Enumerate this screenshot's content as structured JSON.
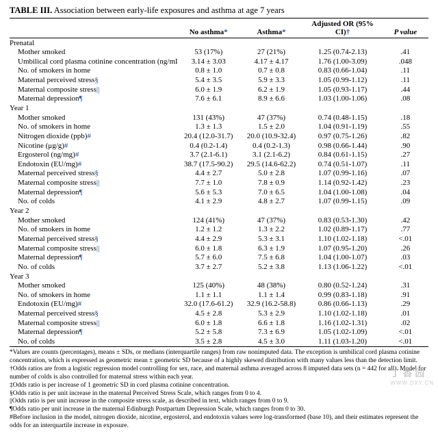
{
  "title_prefix": "TABLE III.",
  "title_rest": " Association between early-life exposures and asthma at age 7 years",
  "columns": {
    "c0": "",
    "c1": "No asthma",
    "c2": "Asthma",
    "c3": "Adjusted OR (95% CI)",
    "c4": "P value"
  },
  "col_marks": {
    "c1": "*",
    "c2": "*",
    "c3": "†",
    "c4": ""
  },
  "col_widths": [
    "40%",
    "15%",
    "15%",
    "19%",
    "11%"
  ],
  "sections": [
    {
      "heading": "Prenatal",
      "rows": [
        {
          "label": "Mother smoked",
          "sym": "",
          "c1": "53 (17%)",
          "c2": "27 (21%)",
          "c3": "1.25 (0.74-2.13)",
          "p": ".41"
        },
        {
          "label": "Umbilical cord plasma cotinine concentration (ng/mL)",
          "sym": "‡",
          "c1": "3.14 ± 3.03",
          "c2": "4.17 ± 4.17",
          "c3": "1.76 (1.00-3.09)",
          "p": ".048"
        },
        {
          "label": "No. of smokers in home",
          "sym": "",
          "c1": "0.8 ± 1.0",
          "c2": "0.7 ± 0.8",
          "c3": "0.83 (0.66-1.04)",
          "p": ".11"
        },
        {
          "label": "Maternal perceived stress",
          "sym": "§",
          "c1": "5.4 ± 3.5",
          "c2": "5.9 ± 3.3",
          "c3": "1.05 (0.99-1.12)",
          "p": ".11"
        },
        {
          "label": "Maternal composite stress",
          "sym": "||",
          "c1": "6.0 ± 1.9",
          "c2": "6.2 ± 1.9",
          "c3": "1.05 (0.93-1.17)",
          "p": ".44"
        },
        {
          "label": "Maternal depression",
          "sym": "¶",
          "c1": "7.6 ± 6.1",
          "c2": "8.9 ± 6.6",
          "c3": "1.03 (1.00-1.06)",
          "p": ".08"
        }
      ]
    },
    {
      "heading": "Year 1",
      "rows": [
        {
          "label": "Mother smoked",
          "sym": "",
          "c1": "131 (43%)",
          "c2": "47 (37%)",
          "c3": "0.74 (0.48-1.15)",
          "p": ".18"
        },
        {
          "label": "No. of smokers in home",
          "sym": "",
          "c1": "1.3 ± 1.3",
          "c2": "1.5 ± 2.0",
          "c3": "1.04 (0.91-1.19)",
          "p": ".55"
        },
        {
          "label": "Nitrogen dioxide (ppb)",
          "sym": "#",
          "c1": "20.4 (12.0-31.7)",
          "c2": "20.0 (10.9-32.4)",
          "c3": "0.97 (0.75-1.26)",
          "p": ".82"
        },
        {
          "label": "Nicotine (μg/g)",
          "sym": "#",
          "c1": "0.4 (0.2-1.4)",
          "c2": "0.4 (0.2-1.3)",
          "c3": "0.98 (0.66-1.44)",
          "p": ".90"
        },
        {
          "label": "Ergosterol (ng/mg)",
          "sym": "#",
          "c1": "3.7 (2.1-6.1)",
          "c2": "3.1 (2.1-6.2)",
          "c3": "0.84 (0.61-1.15)",
          "p": ".27"
        },
        {
          "label": "Endotoxin (EU/mg)",
          "sym": "#",
          "c1": "38.7 (17.5-90.2)",
          "c2": "29.5 (14.6-62.2)",
          "c3": "0.74 (0.51-1.07)",
          "p": ".11"
        },
        {
          "label": "Maternal perceived stress",
          "sym": "§",
          "c1": "4.4 ± 2.7",
          "c2": "5.0 ± 2.8",
          "c3": "1.07 (0.99-1.16)",
          "p": ".07"
        },
        {
          "label": "Maternal composite stress",
          "sym": "||",
          "c1": "7.7 ± 1.0",
          "c2": "7.8 ± 0.9",
          "c3": "1.14 (0.92-1.42)",
          "p": ".23"
        },
        {
          "label": "Maternal depression",
          "sym": "¶",
          "c1": "5.6 ± 5.3",
          "c2": "7.0 ± 6.5",
          "c3": "1.04 (1.00-1.08)",
          "p": ".04"
        },
        {
          "label": "No. of colds",
          "sym": "",
          "c1": "4.1 ± 2.9",
          "c2": "4.8 ± 2.7",
          "c3": "1.07 (0.99-1.15)",
          "p": ".09"
        }
      ]
    },
    {
      "heading": "Year 2",
      "rows": [
        {
          "label": "Mother smoked",
          "sym": "",
          "c1": "124 (41%)",
          "c2": "47 (37%)",
          "c3": "0.83 (0.53-1.30)",
          "p": ".42"
        },
        {
          "label": "No. of smokers in home",
          "sym": "",
          "c1": "1.2 ± 1.2",
          "c2": "1.3 ± 2.2",
          "c3": "1.02 (0.89-1.17)",
          "p": ".77"
        },
        {
          "label": "Maternal perceived stress",
          "sym": "§",
          "c1": "4.4 ± 2.9",
          "c2": "5.3 ± 3.1",
          "c3": "1.10 (1.02-1.18)",
          "p": "<.01"
        },
        {
          "label": "Maternal composite stress",
          "sym": "||",
          "c1": "6.0 ± 1.8",
          "c2": "6.3 ± 1.9",
          "c3": "1.07 (0.95-1.20)",
          "p": ".26"
        },
        {
          "label": "Maternal depression",
          "sym": "¶",
          "c1": "5.7 ± 6.0",
          "c2": "7.5 ± 6.8",
          "c3": "1.04 (1.00-1.07)",
          "p": ".03"
        },
        {
          "label": "No. of colds",
          "sym": "",
          "c1": "3.7 ± 2.7",
          "c2": "5.2 ± 3.8",
          "c3": "1.13 (1.06-1.22)",
          "p": "<.01"
        }
      ]
    },
    {
      "heading": "Year 3",
      "rows": [
        {
          "label": "Mother smoked",
          "sym": "",
          "c1": "125 (40%)",
          "c2": "48 (38%)",
          "c3": "0.80 (0.52-1.24)",
          "p": ".31"
        },
        {
          "label": "No. of smokers in home",
          "sym": "",
          "c1": "1.1 ± 1.1",
          "c2": "1.1 ± 1.4",
          "c3": "0.99 (0.83-1.18)",
          "p": ".91"
        },
        {
          "label": "Endotoxin (EU/mg)",
          "sym": "#",
          "c1": "32.0 (17.6-61.2)",
          "c2": "32.9 (16.2-58.8)",
          "c3": "0.86 (0.66-1.13)",
          "p": ".29"
        },
        {
          "label": "Maternal perceived stress",
          "sym": "§",
          "c1": "4.5 ± 2.8",
          "c2": "5.3 ± 2.9",
          "c3": "1.10 (1.02-1.18)",
          "p": ".01"
        },
        {
          "label": "Maternal composite stress",
          "sym": "||",
          "c1": "6.0 ± 1.8",
          "c2": "6.6 ± 1.8",
          "c3": "1.16 (1.02-1.31)",
          "p": ".02"
        },
        {
          "label": "Maternal depression",
          "sym": "¶",
          "c1": "5.2 ± 5.8",
          "c2": "7.3 ± 6.9",
          "c3": "1.05 (1.02-1.09)",
          "p": "<.01"
        },
        {
          "label": "No. of colds",
          "sym": "",
          "c1": "3.5 ± 2.8",
          "c2": "4.5 ± 3.0",
          "c3": "1.11 (1.03-1.20)",
          "p": "<.01"
        }
      ]
    }
  ],
  "footnotes": [
    "*Values are counts (percentages), means ± SDs, or medians (interquartile ranges) from raw nonimputed data. The exception is umbilical cord plasma cotinine concentration, which is expressed as geometric mean ± geometric SD because of a highly skewed distribution with many values less than the detection limit.",
    "†Odds ratios are from a logistic regression model controlling for sex, race, and maternal asthma averaged across 8 imputed data sets (n = 442 for all). Model for number of colds is also controlled for maternal stress within each year.",
    "‡Odds ratio is per increase of 1 geometric SD in cord plasma cotinine concentration.",
    "§Odds ratio is per unit increase in the maternal Perceived Stress Scale, which ranges from 0 to 4.",
    "||Odds ratio is per unit increase in the composite stress scale, as described in text, which ranges from 0 to 9.",
    "¶Odds ratio per unit increase in the maternal Edinburgh Postpartum Depression Scale, which ranges from 0 to 30.",
    "#Before inclusion in the model, nitrogen dioxide, nicotine, ergosterol, and endotoxin values were log-transformed (base 10), and their estimates represent the odds for an interquartile increase in exposure."
  ],
  "watermark": "丁香园",
  "watermark_sub": "WWW.DXY.CN"
}
